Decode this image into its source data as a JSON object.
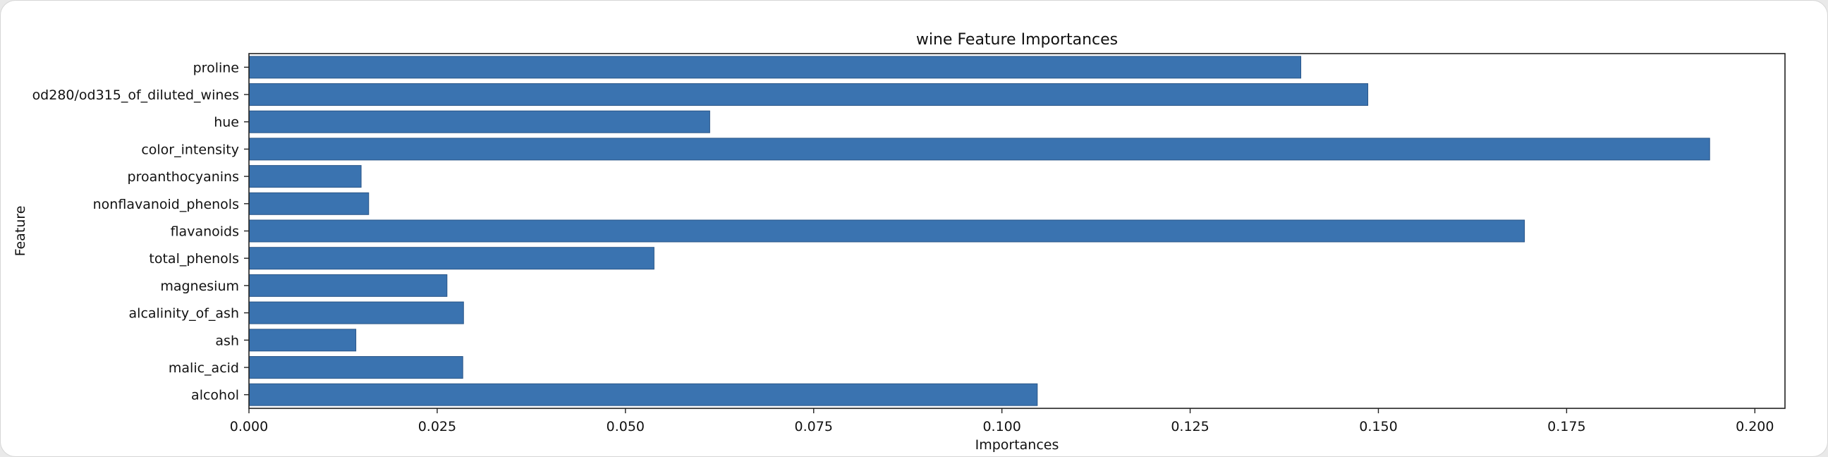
{
  "chart_data": {
    "type": "bar",
    "orientation": "horizontal",
    "title": "wine Feature Importances",
    "xlabel": "Importances",
    "ylabel": "Feature",
    "xlim": [
      0.0,
      0.204
    ],
    "xticks": [
      "0.000",
      "0.025",
      "0.050",
      "0.075",
      "0.100",
      "0.125",
      "0.150",
      "0.175",
      "0.200"
    ],
    "xtick_values": [
      0.0,
      0.025,
      0.05,
      0.075,
      0.1,
      0.125,
      0.15,
      0.175,
      0.2
    ],
    "grid": false,
    "bar_color": "#3a73b0",
    "categories": [
      "alcohol",
      "malic_acid",
      "ash",
      "alcalinity_of_ash",
      "magnesium",
      "total_phenols",
      "flavanoids",
      "nonflavanoid_phenols",
      "proanthocyanins",
      "color_intensity",
      "hue",
      "od280/od315_of_diluted_wines",
      "proline"
    ],
    "values": [
      0.1047,
      0.0284,
      0.0142,
      0.0285,
      0.0263,
      0.0538,
      0.1694,
      0.0159,
      0.0149,
      0.194,
      0.0612,
      0.1486,
      0.1397
    ]
  }
}
